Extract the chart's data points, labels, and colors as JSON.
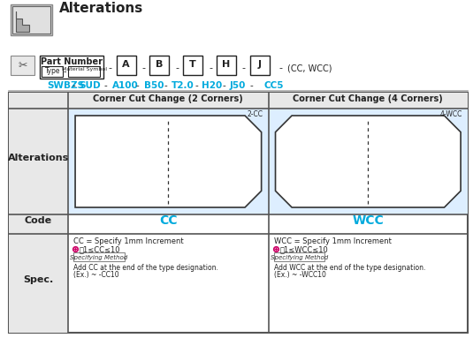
{
  "title": "Alterations",
  "bg_color": "#ffffff",
  "light_blue": "#ddeeff",
  "cyan_text": "#00aadd",
  "dark_text": "#222222",
  "part_number_row": {
    "fields": [
      "A",
      "B",
      "T",
      "H",
      "J"
    ],
    "type_label": "Type",
    "material_label": "Material Symbol",
    "part_number_label": "Part Number",
    "suffix": "(CC, WCC)"
  },
  "example_row": {
    "values": [
      "SWBZS",
      "SUD",
      "A100",
      "B50",
      "T2.0",
      "H20",
      "J50",
      "CC5"
    ]
  },
  "table": {
    "col1_header": "Corner Cut Change (2 Corners)",
    "col2_header": "Corner Cut Change (4 Corners)",
    "row1_label": "Alterations",
    "row2_label": "Code",
    "row3_label": "Spec.",
    "code1": "CC",
    "code2": "WCC",
    "shape1_label": "2-CC",
    "shape2_label": "4-WCC",
    "spec1_line1": "CC = Specify 1mm Increment",
    "spec1_line2": "⑱1≤CC≤10",
    "spec1_line3": "Specifying Method",
    "spec1_line4": "Add CC at the end of the type designation.",
    "spec1_line5": "(Ex.) ~ -CC10",
    "spec2_line1": "WCC = Specify 1mm Increment",
    "spec2_line2": "⑱1≤WCC≤10",
    "spec2_line3": "Specifying Method",
    "spec2_line4": "Add WCC at the end of the type designation.",
    "spec2_line5": "(Ex.) ~ -WCC10"
  }
}
